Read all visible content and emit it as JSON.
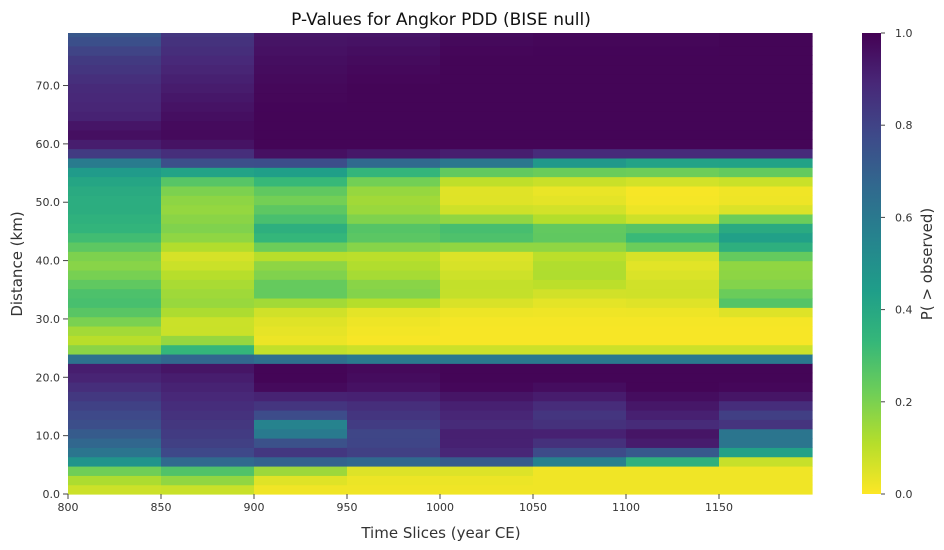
{
  "chart_data": {
    "type": "heatmap",
    "title": "P-Values for Angkor PDD (BISE null)",
    "xlabel": "Time Slices (year CE)",
    "ylabel": "Distance (km)",
    "colorbar_label": "P( > observed)",
    "colormap": "viridis_r",
    "x_bins": [
      800,
      850,
      900,
      950,
      1000,
      1050,
      1100,
      1150,
      1200
    ],
    "xlim": [
      800,
      1200
    ],
    "x_ticks": [
      800,
      850,
      900,
      950,
      1000,
      1050,
      1100,
      1150
    ],
    "x_tick_labels": [
      "800",
      "850",
      "900",
      "950",
      "1000",
      "1050",
      "1100",
      "1150"
    ],
    "y_bin_km": 1.6,
    "ylim": [
      0,
      79
    ],
    "y_ticks": [
      0,
      10,
      20,
      30,
      40,
      50,
      60,
      70
    ],
    "y_tick_labels": [
      "0.0",
      "10.0",
      "20.0",
      "30.0",
      "40.0",
      "50.0",
      "60.0",
      "70.0"
    ],
    "colorbar_range": [
      0.0,
      1.0
    ],
    "colorbar_ticks": [
      0.0,
      0.2,
      0.4,
      0.6,
      0.8,
      1.0
    ],
    "colorbar_tick_labels": [
      "0.0",
      "0.2",
      "0.4",
      "0.6",
      "0.8",
      "1.0"
    ],
    "column_profiles": [
      [
        [
          0,
          0.06
        ],
        [
          2,
          0.1
        ],
        [
          4,
          0.22
        ],
        [
          6,
          0.55
        ],
        [
          8,
          0.65
        ],
        [
          10,
          0.7
        ],
        [
          12,
          0.76
        ],
        [
          14,
          0.78
        ],
        [
          16,
          0.82
        ],
        [
          18,
          0.86
        ],
        [
          20,
          0.9
        ],
        [
          22,
          0.92
        ],
        [
          23.5,
          0.55
        ],
        [
          25,
          0.12
        ],
        [
          27,
          0.1
        ],
        [
          29,
          0.18
        ],
        [
          31,
          0.26
        ],
        [
          33,
          0.3
        ],
        [
          35,
          0.28
        ],
        [
          37,
          0.22
        ],
        [
          39,
          0.18
        ],
        [
          41,
          0.2
        ],
        [
          43,
          0.28
        ],
        [
          45,
          0.34
        ],
        [
          47,
          0.36
        ],
        [
          49,
          0.38
        ],
        [
          51,
          0.38
        ],
        [
          53,
          0.4
        ],
        [
          55,
          0.44
        ],
        [
          57,
          0.6
        ],
        [
          58,
          0.8
        ],
        [
          60,
          0.92
        ],
        [
          62,
          0.97
        ],
        [
          65,
          0.9
        ],
        [
          70,
          0.88
        ],
        [
          75,
          0.82
        ],
        [
          79,
          0.72
        ]
      ],
      [
        [
          0,
          0.04
        ],
        [
          2,
          0.14
        ],
        [
          4,
          0.28
        ],
        [
          6,
          0.75
        ],
        [
          8,
          0.8
        ],
        [
          10,
          0.82
        ],
        [
          12,
          0.84
        ],
        [
          14,
          0.86
        ],
        [
          16,
          0.88
        ],
        [
          18,
          0.9
        ],
        [
          20,
          0.92
        ],
        [
          22,
          0.95
        ],
        [
          23.5,
          0.6
        ],
        [
          25,
          0.3
        ],
        [
          27,
          0.1
        ],
        [
          29,
          0.06
        ],
        [
          31,
          0.12
        ],
        [
          33,
          0.16
        ],
        [
          35,
          0.14
        ],
        [
          37,
          0.12
        ],
        [
          39,
          0.08
        ],
        [
          41,
          0.06
        ],
        [
          43,
          0.14
        ],
        [
          45,
          0.2
        ],
        [
          47,
          0.18
        ],
        [
          49,
          0.16
        ],
        [
          51,
          0.18
        ],
        [
          53,
          0.22
        ],
        [
          55,
          0.38
        ],
        [
          57,
          0.8
        ],
        [
          60,
          0.95
        ],
        [
          62,
          0.98
        ],
        [
          65,
          0.96
        ],
        [
          70,
          0.92
        ],
        [
          75,
          0.88
        ],
        [
          79,
          0.84
        ]
      ],
      [
        [
          0,
          0.02
        ],
        [
          2,
          0.02
        ],
        [
          4,
          0.15
        ],
        [
          6,
          0.82
        ],
        [
          8,
          0.85
        ],
        [
          10,
          0.6
        ],
        [
          12,
          0.55
        ],
        [
          14,
          0.82
        ],
        [
          16,
          0.86
        ],
        [
          18,
          0.97
        ],
        [
          20,
          0.99
        ],
        [
          22,
          0.99
        ],
        [
          23.5,
          0.55
        ],
        [
          25,
          0.02
        ],
        [
          27,
          0.03
        ],
        [
          29,
          0.04
        ],
        [
          31,
          0.06
        ],
        [
          33,
          0.15
        ],
        [
          35,
          0.28
        ],
        [
          37,
          0.2
        ],
        [
          39,
          0.18
        ],
        [
          41,
          0.1
        ],
        [
          43,
          0.28
        ],
        [
          45,
          0.4
        ],
        [
          47,
          0.3
        ],
        [
          49,
          0.25
        ],
        [
          51,
          0.2
        ],
        [
          53,
          0.3
        ],
        [
          55,
          0.4
        ],
        [
          57,
          0.8
        ],
        [
          58,
          0.95
        ],
        [
          60,
          0.99
        ],
        [
          65,
          0.99
        ],
        [
          70,
          0.98
        ],
        [
          75,
          0.96
        ],
        [
          79,
          0.94
        ]
      ],
      [
        [
          0,
          0.02
        ],
        [
          2,
          0.02
        ],
        [
          4,
          0.05
        ],
        [
          6,
          0.82
        ],
        [
          8,
          0.8
        ],
        [
          10,
          0.78
        ],
        [
          12,
          0.82
        ],
        [
          14,
          0.85
        ],
        [
          16,
          0.88
        ],
        [
          18,
          0.95
        ],
        [
          20,
          0.97
        ],
        [
          22,
          0.98
        ],
        [
          23.5,
          0.5
        ],
        [
          25,
          0.01
        ],
        [
          27,
          0.01
        ],
        [
          29,
          0.02
        ],
        [
          31,
          0.03
        ],
        [
          33,
          0.12
        ],
        [
          35,
          0.22
        ],
        [
          37,
          0.14
        ],
        [
          39,
          0.12
        ],
        [
          41,
          0.1
        ],
        [
          43,
          0.22
        ],
        [
          45,
          0.3
        ],
        [
          47,
          0.2
        ],
        [
          49,
          0.15
        ],
        [
          51,
          0.14
        ],
        [
          53,
          0.18
        ],
        [
          55,
          0.3
        ],
        [
          57,
          0.7
        ],
        [
          58,
          0.92
        ],
        [
          60,
          0.99
        ],
        [
          65,
          0.99
        ],
        [
          70,
          0.99
        ],
        [
          75,
          0.97
        ],
        [
          79,
          0.94
        ]
      ],
      [
        [
          0,
          0.02
        ],
        [
          2,
          0.02
        ],
        [
          4,
          0.05
        ],
        [
          6,
          0.88
        ],
        [
          8,
          0.9
        ],
        [
          10,
          0.92
        ],
        [
          12,
          0.88
        ],
        [
          14,
          0.9
        ],
        [
          16,
          0.92
        ],
        [
          18,
          0.98
        ],
        [
          20,
          0.99
        ],
        [
          22,
          0.99
        ],
        [
          23.5,
          0.5
        ],
        [
          25,
          0.01
        ],
        [
          27,
          0.01
        ],
        [
          29,
          0.01
        ],
        [
          31,
          0.02
        ],
        [
          33,
          0.06
        ],
        [
          35,
          0.1
        ],
        [
          37,
          0.08
        ],
        [
          39,
          0.06
        ],
        [
          41,
          0.05
        ],
        [
          43,
          0.22
        ],
        [
          45,
          0.35
        ],
        [
          47,
          0.18
        ],
        [
          49,
          0.06
        ],
        [
          51,
          0.04
        ],
        [
          53,
          0.05
        ],
        [
          55,
          0.2
        ],
        [
          57,
          0.65
        ],
        [
          58,
          0.9
        ],
        [
          60,
          0.99
        ],
        [
          65,
          0.99
        ],
        [
          70,
          0.99
        ],
        [
          75,
          0.99
        ],
        [
          79,
          0.97
        ]
      ],
      [
        [
          0,
          0.02
        ],
        [
          2,
          0.02
        ],
        [
          4,
          0.02
        ],
        [
          6,
          0.7
        ],
        [
          8,
          0.82
        ],
        [
          10,
          0.92
        ],
        [
          12,
          0.86
        ],
        [
          14,
          0.84
        ],
        [
          16,
          0.9
        ],
        [
          18,
          0.96
        ],
        [
          20,
          0.99
        ],
        [
          22,
          0.99
        ],
        [
          23.5,
          0.5
        ],
        [
          25,
          0.01
        ],
        [
          27,
          0.01
        ],
        [
          29,
          0.01
        ],
        [
          31,
          0.02
        ],
        [
          33,
          0.04
        ],
        [
          35,
          0.08
        ],
        [
          37,
          0.12
        ],
        [
          39,
          0.12
        ],
        [
          41,
          0.1
        ],
        [
          43,
          0.2
        ],
        [
          45,
          0.3
        ],
        [
          47,
          0.12
        ],
        [
          49,
          0.06
        ],
        [
          51,
          0.03
        ],
        [
          53,
          0.03
        ],
        [
          55,
          0.2
        ],
        [
          57,
          0.5
        ],
        [
          58,
          0.85
        ],
        [
          60,
          0.99
        ],
        [
          65,
          0.99
        ],
        [
          70,
          0.99
        ],
        [
          75,
          0.99
        ],
        [
          79,
          0.98
        ]
      ],
      [
        [
          0,
          0.02
        ],
        [
          2,
          0.02
        ],
        [
          4,
          0.02
        ],
        [
          6,
          0.45
        ],
        [
          8,
          0.9
        ],
        [
          10,
          0.96
        ],
        [
          12,
          0.88
        ],
        [
          14,
          0.92
        ],
        [
          16,
          0.95
        ],
        [
          18,
          0.99
        ],
        [
          20,
          0.99
        ],
        [
          22,
          0.99
        ],
        [
          23.5,
          0.5
        ],
        [
          25,
          0.01
        ],
        [
          27,
          0.01
        ],
        [
          29,
          0.01
        ],
        [
          31,
          0.02
        ],
        [
          33,
          0.05
        ],
        [
          35,
          0.08
        ],
        [
          37,
          0.06
        ],
        [
          39,
          0.04
        ],
        [
          41,
          0.06
        ],
        [
          43,
          0.3
        ],
        [
          45,
          0.35
        ],
        [
          47,
          0.08
        ],
        [
          49,
          0.02
        ],
        [
          51,
          0.01
        ],
        [
          53,
          0.01
        ],
        [
          55,
          0.2
        ],
        [
          57,
          0.45
        ],
        [
          58,
          0.85
        ],
        [
          60,
          0.99
        ],
        [
          65,
          0.99
        ],
        [
          70,
          0.99
        ],
        [
          75,
          0.99
        ],
        [
          79,
          0.98
        ]
      ],
      [
        [
          0,
          0.02
        ],
        [
          2,
          0.02
        ],
        [
          4,
          0.02
        ],
        [
          6,
          0.1
        ],
        [
          8,
          0.65
        ],
        [
          10,
          0.55
        ],
        [
          12,
          0.85
        ],
        [
          14,
          0.8
        ],
        [
          16,
          0.92
        ],
        [
          18,
          0.98
        ],
        [
          20,
          0.99
        ],
        [
          22,
          0.99
        ],
        [
          23.5,
          0.5
        ],
        [
          25,
          0.01
        ],
        [
          27,
          0.01
        ],
        [
          29,
          0.01
        ],
        [
          31,
          0.02
        ],
        [
          33,
          0.3
        ],
        [
          35,
          0.2
        ],
        [
          37,
          0.18
        ],
        [
          39,
          0.16
        ],
        [
          41,
          0.25
        ],
        [
          43,
          0.42
        ],
        [
          45,
          0.45
        ],
        [
          47,
          0.25
        ],
        [
          49,
          0.03
        ],
        [
          51,
          0.02
        ],
        [
          53,
          0.02
        ],
        [
          55,
          0.22
        ],
        [
          57,
          0.45
        ],
        [
          58,
          0.85
        ],
        [
          60,
          0.99
        ],
        [
          65,
          0.99
        ],
        [
          70,
          0.99
        ],
        [
          75,
          0.99
        ],
        [
          79,
          0.99
        ]
      ]
    ]
  }
}
